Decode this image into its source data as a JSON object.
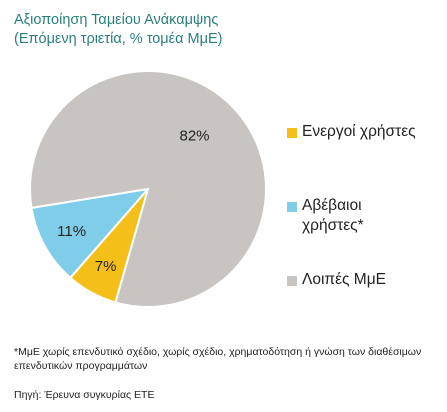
{
  "title": "Αξιοποίηση Ταμείου Ανάκαμψης",
  "subtitle": "(Επόμενη τριετία, % τομέα ΜμΕ)",
  "chart_data": {
    "type": "pie",
    "title": "Αξιοποίηση Ταμείου Ανάκαμψης",
    "subtitle": "(Επόμενη τριετία, % τομέα ΜμΕ)",
    "categories": [
      "Ενεργοί χρήστες",
      "Αβέβαιοι χρήστες*",
      "Λοιπές ΜμΕ"
    ],
    "values": [
      7,
      11,
      82
    ],
    "data_labels": [
      "7%",
      "11%",
      "82%"
    ],
    "colors": [
      "#f5bf1a",
      "#7fcde8",
      "#c8c4c1"
    ],
    "legend_position": "right"
  },
  "legend": [
    {
      "label": "Ενεργοί χρήστες",
      "color": "#f5bf1a"
    },
    {
      "label": "Αβέβαιοι χρήστες*",
      "color": "#7fcde8"
    },
    {
      "label": "Λοιπές ΜμΕ",
      "color": "#c8c4c1"
    }
  ],
  "footnote": "*ΜμΕ χωρίς επενδυτικό σχέδιο, χωρίς σχέδιο, χρηματοδότηση ή γνώση των  διαθέσιμων επενδυτικών προγραμμάτων",
  "source": "Πηγή: Έρευνα συγκυρίας ΕΤΕ",
  "colors": {
    "title": "#2a7f7b",
    "text": "#222222",
    "background": "#ffffff"
  }
}
